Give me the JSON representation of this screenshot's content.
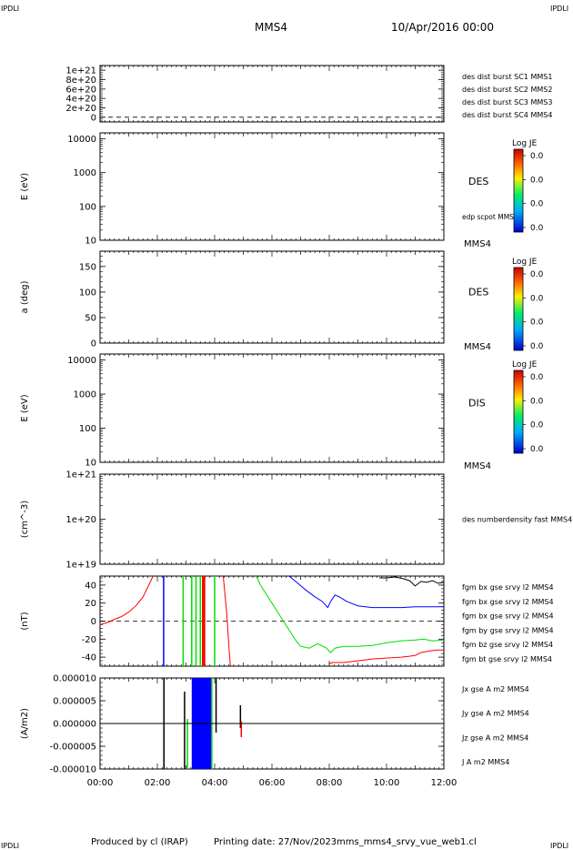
{
  "corner_label": "IPDLI",
  "header": {
    "spacecraft": "MMS4",
    "datetime": "10/Apr/2016 00:00"
  },
  "footer": {
    "producer": "Produced by cl (IRAP)",
    "printing": "Printing date: 27/Nov/2023",
    "filename": "mms_mms4_srvy_vue_web1.cl"
  },
  "colors": {
    "blue": "#0000ff",
    "magenta": "#ff00ff",
    "red": "#ff0000",
    "green": "#00dd00",
    "black": "#000000"
  },
  "chart_data": [
    {
      "type": "line",
      "id": "burst",
      "ylabel": "",
      "ylim": [
        -1e+20,
        1.1e+21
      ],
      "scale": "linear",
      "ticks": [
        0,
        2e+20,
        4e+20,
        6e+20,
        8e+20,
        1e+21
      ],
      "tick_labels": [
        "0",
        "2e+20",
        "4e+20",
        "6e+20",
        "8e+20",
        "1e+21"
      ],
      "zero_line": true,
      "series": [
        {
          "name": "des dist burst SC1 MMS1",
          "color": "#0000ff"
        },
        {
          "name": "des dist burst SC2 MMS2",
          "color": "#ff00ff"
        },
        {
          "name": "des dist burst SC3 MMS3",
          "color": "#ff0000"
        },
        {
          "name": "des dist burst SC4 MMS4",
          "color": "#00dd00"
        }
      ]
    },
    {
      "type": "heatmap",
      "id": "des_energy",
      "ylabel": "E (eV)",
      "scale": "log",
      "ylim": [
        10,
        15000
      ],
      "ticks": [
        10,
        100,
        1000,
        10000
      ],
      "tick_labels": [
        "10",
        "100",
        "1000",
        "10000"
      ],
      "instrument": "DES",
      "overlay": "edp scpot MMS4",
      "spacecraft_tag": "MMS4",
      "colorbar": {
        "title": "Log JE",
        "labels": [
          "0.0",
          "0.0",
          "0.0",
          "0.0"
        ]
      }
    },
    {
      "type": "heatmap",
      "id": "des_pitch",
      "ylabel": "a (deg)",
      "scale": "linear",
      "ylim": [
        0,
        180
      ],
      "ticks": [
        0,
        50,
        100,
        150
      ],
      "tick_labels": [
        "0",
        "50",
        "100",
        "150"
      ],
      "instrument": "DES",
      "spacecraft_tag": "MMS4",
      "colorbar": {
        "title": "Log JE",
        "labels": [
          "0.0",
          "0.0",
          "0.0",
          "0.0"
        ]
      }
    },
    {
      "type": "heatmap",
      "id": "dis_energy",
      "ylabel": "E (eV)",
      "scale": "log",
      "ylim": [
        10,
        15000
      ],
      "ticks": [
        10,
        100,
        1000,
        10000
      ],
      "tick_labels": [
        "10",
        "100",
        "1000",
        "10000"
      ],
      "instrument": "DIS",
      "spacecraft_tag": "MMS4",
      "colorbar": {
        "title": "Log JE",
        "labels": [
          "0.0",
          "0.0",
          "0.0",
          "0.0"
        ]
      }
    },
    {
      "type": "line",
      "id": "density",
      "ylabel": "(cm^-3)",
      "scale": "log",
      "ylim": [
        1e+19,
        1e+21
      ],
      "ticks": [
        1e+19,
        1e+20,
        1e+21
      ],
      "tick_labels": [
        "1e+19",
        "1e+20",
        "1e+21"
      ],
      "series": [
        {
          "name": "des numberdensity fast MMS4",
          "color": "#000000"
        }
      ]
    },
    {
      "type": "line",
      "id": "fgm",
      "ylabel": "(nT)",
      "scale": "linear",
      "ylim": [
        -50,
        50
      ],
      "ticks": [
        -40,
        -20,
        0,
        20,
        40
      ],
      "tick_labels": [
        "-40",
        "-20",
        "0",
        "20",
        "40"
      ],
      "zero_line": true,
      "series": [
        {
          "name": "fgm bx gse srvy l2 MMS4",
          "color": "#ff0000",
          "x": [
            0,
            0.1,
            0.3,
            0.5,
            0.75,
            1.0,
            1.25,
            1.5,
            1.7,
            1.85
          ],
          "y": [
            -4,
            -3,
            -1,
            2,
            5,
            10,
            17,
            27,
            40,
            50
          ]
        },
        {
          "name": "fgm bx gse srvy l2 MMS4",
          "color": "#ff0000",
          "x": [
            4.3,
            4.42,
            4.5,
            4.55
          ],
          "y": [
            50,
            10,
            -30,
            -50
          ]
        },
        {
          "name": "fgm bx gse srvy l2 MMS4",
          "color": "#ff0000",
          "x": [
            7.98,
            8.1,
            8.5,
            9.0,
            9.5,
            10.0,
            10.5,
            10.8,
            11.0,
            11.2,
            11.5,
            11.8,
            12.0
          ],
          "y": [
            -48,
            -46,
            -46,
            -44,
            -42,
            -41,
            -40,
            -39,
            -38,
            -35,
            -33,
            -32,
            -32
          ]
        },
        {
          "name": "fgm by gse srvy l2 MMS4",
          "color": "#00dd00",
          "x": [
            5.45,
            5.6,
            5.8,
            6.0,
            6.2,
            6.4,
            6.6,
            6.8,
            7.0,
            7.3,
            7.6,
            7.9,
            8.05,
            8.2,
            8.5,
            9.0,
            9.5,
            10.0,
            10.5,
            11.0,
            11.3,
            11.6,
            12.0
          ],
          "y": [
            50,
            40,
            30,
            20,
            10,
            0,
            -10,
            -20,
            -28,
            -30,
            -25,
            -30,
            -35,
            -30,
            -28,
            -28,
            -27,
            -24,
            -22,
            -21,
            -20,
            -22,
            -21
          ]
        },
        {
          "name": "fgm bz gse srvy l2 MMS4",
          "color": "#0000ff",
          "x": [
            6.6,
            6.9,
            7.2,
            7.5,
            7.75,
            7.95,
            8.05,
            8.2,
            8.35,
            8.6,
            9.0,
            9.5,
            10.0,
            10.5,
            11.0,
            11.5,
            12.0
          ],
          "y": [
            50,
            42,
            34,
            27,
            22,
            15,
            22,
            29,
            27,
            22,
            17,
            15,
            15,
            15,
            16,
            16,
            16
          ]
        },
        {
          "name": "fgm bt gse srvy l2 MMS4",
          "color": "#000000",
          "x": [
            9.75,
            10.0,
            10.3,
            10.6,
            10.8,
            11.0,
            11.2,
            11.4,
            11.6,
            11.8,
            12.0
          ],
          "y": [
            48,
            48,
            49,
            47,
            45,
            39,
            44,
            43,
            45,
            42,
            43
          ]
        }
      ],
      "spikes": [
        {
          "x": 2.22,
          "color": "#0000ff"
        },
        {
          "x": 2.9,
          "color": "#00dd00"
        },
        {
          "x": 3.2,
          "color": "#00dd00"
        },
        {
          "x": 3.35,
          "color": "#00dd00"
        },
        {
          "x": 3.5,
          "color": "#00dd00"
        },
        {
          "x": 3.58,
          "color": "#ff0000"
        },
        {
          "x": 3.62,
          "color": "#ff0000"
        },
        {
          "x": 3.65,
          "color": "#ff0000"
        },
        {
          "x": 4.0,
          "color": "#00dd00"
        }
      ]
    },
    {
      "type": "line",
      "id": "current",
      "ylabel": "(A/m2)",
      "scale": "linear",
      "ylim": [
        -1e-05,
        1e-05
      ],
      "ticks": [
        -1e-05,
        -5e-06,
        0,
        5e-06,
        1e-05
      ],
      "tick_labels": [
        "-0.000010",
        "-0.000005",
        "0.000000",
        "0.000005",
        "0.000010"
      ],
      "xlim": [
        0,
        12
      ],
      "xticks": [
        0,
        2,
        4,
        6,
        8,
        10,
        12
      ],
      "xtick_labels": [
        "00:00",
        "02:00",
        "04:00",
        "06:00",
        "08:00",
        "10:00",
        "12:00"
      ],
      "series": [
        {
          "name": "Jx gse A m2 MMS4",
          "color": "#ff0000"
        },
        {
          "name": "Jy gse A m2 MMS4",
          "color": "#00dd00"
        },
        {
          "name": "Jz gse A m2 MMS4",
          "color": "#0000ff"
        },
        {
          "name": "J A m2 MMS4",
          "color": "#000000"
        }
      ],
      "spikes": [
        {
          "x": 2.23,
          "color": "#000000",
          "lo": -1e-05,
          "hi": 1e-05
        },
        {
          "x": 2.95,
          "color": "#000000",
          "lo": -1e-05,
          "hi": 7e-06
        },
        {
          "x": 3.05,
          "color": "#00dd00",
          "lo": -1e-05,
          "hi": 1e-06
        },
        {
          "x": 3.9,
          "color": "#00dd00",
          "lo": -1e-05,
          "hi": 1e-05
        },
        {
          "x": 4.05,
          "color": "#000000",
          "lo": -2e-06,
          "hi": 1e-05
        },
        {
          "x": 4.9,
          "color": "#000000",
          "lo": -1e-06,
          "hi": 4e-06
        },
        {
          "x": 4.93,
          "color": "#ff0000",
          "lo": -3e-06,
          "hi": 5e-07
        }
      ],
      "block": {
        "x0": 3.2,
        "x1": 3.88,
        "lo": -1e-05,
        "hi": 1e-05,
        "color": "#0000ff"
      }
    }
  ]
}
